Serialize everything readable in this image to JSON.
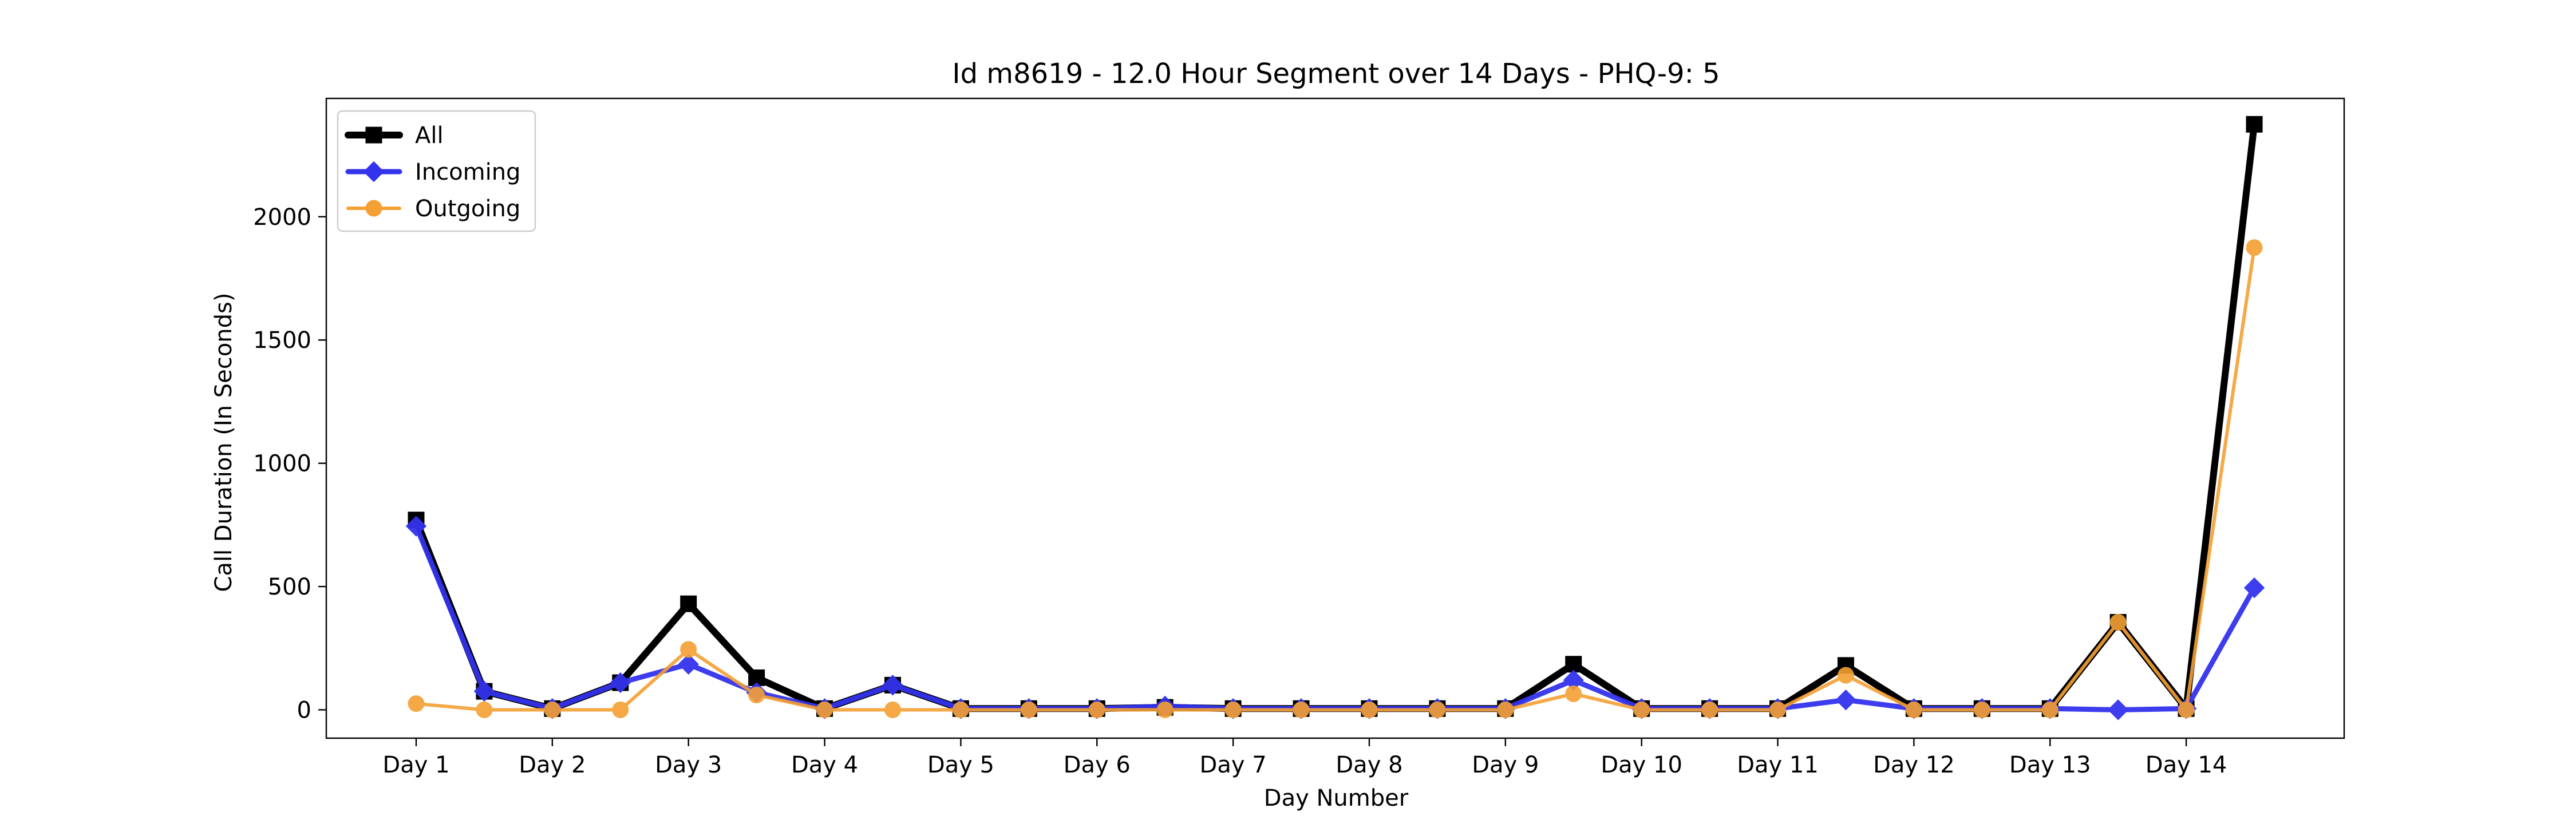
{
  "chart_data": {
    "type": "line",
    "title": "Id m8619 - 12.0 Hour Segment over 14 Days - PHQ-9: 5",
    "xlabel": "Day Number",
    "ylabel": "Call Duration (In Seconds)",
    "x": [
      1,
      1.5,
      2,
      2.5,
      3,
      3.5,
      4,
      4.5,
      5,
      5.5,
      6,
      6.5,
      7,
      7.5,
      8,
      8.5,
      9,
      9.5,
      10,
      10.5,
      11,
      11.5,
      12,
      12.5,
      13,
      13.5,
      14,
      14.5
    ],
    "x_ticks": [
      1,
      2,
      3,
      4,
      5,
      6,
      7,
      8,
      9,
      10,
      11,
      12,
      13,
      14
    ],
    "x_tick_labels": [
      "Day 1",
      "Day 2",
      "Day 3",
      "Day 4",
      "Day 5",
      "Day 6",
      "Day 7",
      "Day 8",
      "Day 9",
      "Day 10",
      "Day 11",
      "Day 12",
      "Day 13",
      "Day 14"
    ],
    "xlim": [
      0.34,
      15.16
    ],
    "ylim": [
      -115,
      2480
    ],
    "y_ticks": [
      0,
      500,
      1000,
      1500,
      2000
    ],
    "y_tick_labels": [
      "0",
      "500",
      "1000",
      "1500",
      "2000"
    ],
    "grid": false,
    "legend_position": "top-left",
    "series": [
      {
        "name": "All",
        "color": "#000000",
        "marker": "square",
        "values": [
          770,
          75,
          5,
          110,
          430,
          130,
          5,
          100,
          5,
          5,
          5,
          10,
          5,
          5,
          5,
          5,
          5,
          185,
          5,
          5,
          5,
          180,
          5,
          5,
          5,
          355,
          5,
          2375
        ]
      },
      {
        "name": "Incoming",
        "color": "#3333ee",
        "marker": "diamond",
        "values": [
          745,
          75,
          5,
          110,
          185,
          70,
          5,
          100,
          5,
          5,
          5,
          15,
          5,
          5,
          5,
          5,
          5,
          120,
          5,
          5,
          5,
          40,
          5,
          5,
          5,
          0,
          5,
          495
        ]
      },
      {
        "name": "Outgoing",
        "color": "#f5a033",
        "marker": "circle",
        "values": [
          25,
          0,
          0,
          0,
          245,
          60,
          0,
          0,
          0,
          0,
          0,
          0,
          0,
          0,
          0,
          0,
          0,
          65,
          0,
          0,
          0,
          140,
          0,
          0,
          0,
          355,
          0,
          1875
        ]
      }
    ]
  }
}
